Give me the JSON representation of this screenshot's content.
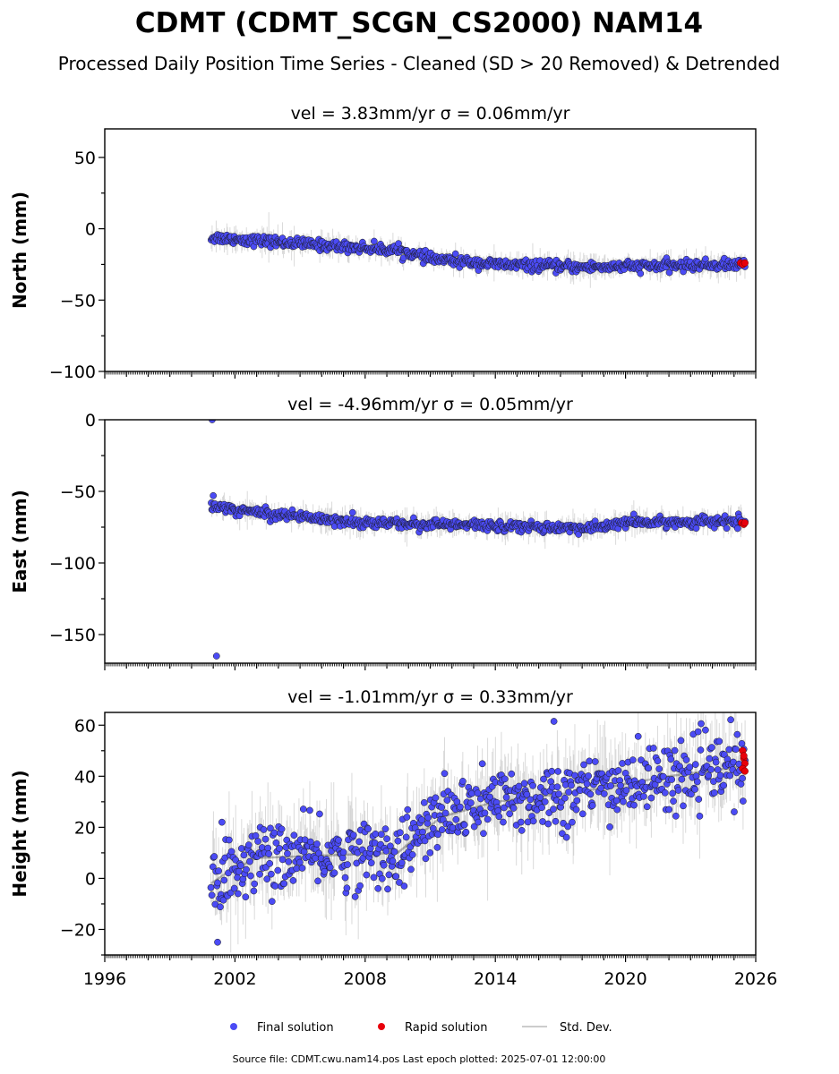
{
  "title": "CDMT (CDMT_SCGN_CS2000) NAM14",
  "subtitle": "Processed Daily Position Time Series - Cleaned (SD > 20 Removed) & Detrended",
  "footer": "Source file: CDMT.cwu.nam14.pos  Last epoch plotted: 2025-07-01 12:00:00",
  "colors": {
    "final": "#4b4bf5",
    "rapid": "#e8000b",
    "stddev": "#bbbbbb",
    "edge": "#1a1a1a"
  },
  "legend": [
    {
      "label": "Final solution",
      "marker": "dot",
      "color": "#4b4bf5"
    },
    {
      "label": "Rapid solution",
      "marker": "dot",
      "color": "#e8000b"
    },
    {
      "label": "Std. Dev.",
      "marker": "line",
      "color": "#bbbbbb"
    }
  ],
  "chart_data": [
    {
      "type": "scatter",
      "title": "vel = 3.83mm/yr   σ = 0.06mm/yr",
      "ylabel": "North (mm)",
      "xlim": [
        1996,
        2026
      ],
      "ylim": [
        -100,
        70
      ],
      "xticks": [
        "1996",
        "2002",
        "2008",
        "2014",
        "2020",
        "2026"
      ],
      "yticks": [
        "50",
        "0",
        "−50",
        "−100"
      ],
      "x_range": [
        2000.9,
        2025.5
      ],
      "trend": [
        [
          2000.9,
          -6
        ],
        [
          2005.5,
          -11
        ],
        [
          2009.5,
          -15
        ],
        [
          2011.0,
          -21
        ],
        [
          2014.0,
          -25
        ],
        [
          2018.0,
          -27
        ],
        [
          2025.5,
          -25
        ]
      ],
      "scatter_sd": 1.8,
      "stddev_sd": 4,
      "outliers": [],
      "rapid": [
        [
          2025.3,
          -24
        ],
        [
          2025.4,
          -25
        ],
        [
          2025.5,
          -24
        ]
      ]
    },
    {
      "type": "scatter",
      "title": "vel = -4.96mm/yr   σ = 0.05mm/yr",
      "ylabel": "East (mm)",
      "xlim": [
        1996,
        2026
      ],
      "ylim": [
        -170,
        0
      ],
      "xticks": [
        "1996",
        "2002",
        "2008",
        "2014",
        "2020",
        "2026"
      ],
      "yticks": [
        "0",
        "−50",
        "−100",
        "−150"
      ],
      "x_range": [
        2000.9,
        2025.5
      ],
      "trend": [
        [
          2000.9,
          -61
        ],
        [
          2004.0,
          -66
        ],
        [
          2008.0,
          -72
        ],
        [
          2014.0,
          -74
        ],
        [
          2018.5,
          -76
        ],
        [
          2019.8,
          -72
        ],
        [
          2025.5,
          -71
        ]
      ],
      "scatter_sd": 1.8,
      "stddev_sd": 4,
      "outliers": [
        [
          2000.95,
          0
        ],
        [
          2001.15,
          -165
        ],
        [
          2001.0,
          -53
        ]
      ],
      "rapid": [
        [
          2025.35,
          -72
        ],
        [
          2025.45,
          -73
        ],
        [
          2025.5,
          -72
        ]
      ]
    },
    {
      "type": "scatter",
      "title": "vel = -1.01mm/yr   σ = 0.33mm/yr",
      "ylabel": "Height (mm)",
      "xlim": [
        1996,
        2026
      ],
      "ylim": [
        -30,
        65
      ],
      "xticks": [
        "1996",
        "2002",
        "2008",
        "2014",
        "2020",
        "2026"
      ],
      "yticks": [
        "60",
        "40",
        "20",
        "0",
        "−20"
      ],
      "x_range": [
        2000.9,
        2025.5
      ],
      "trend": [
        [
          2000.9,
          -2
        ],
        [
          2001.6,
          2
        ],
        [
          2003.0,
          8
        ],
        [
          2009.5,
          10
        ],
        [
          2011.5,
          24
        ],
        [
          2014.0,
          30
        ],
        [
          2018.0,
          34
        ],
        [
          2022.0,
          40
        ],
        [
          2025.5,
          44
        ]
      ],
      "scatter_sd": 6.5,
      "stddev_sd": 8,
      "outliers": [
        [
          2016.7,
          61.5
        ],
        [
          2001.2,
          -25
        ],
        [
          2001.4,
          22
        ],
        [
          2009.8,
          -3
        ]
      ],
      "rapid": [
        [
          2025.4,
          50
        ],
        [
          2025.45,
          47
        ],
        [
          2025.5,
          45
        ],
        [
          2025.4,
          43
        ],
        [
          2025.5,
          42
        ],
        [
          2025.45,
          48
        ]
      ]
    }
  ]
}
